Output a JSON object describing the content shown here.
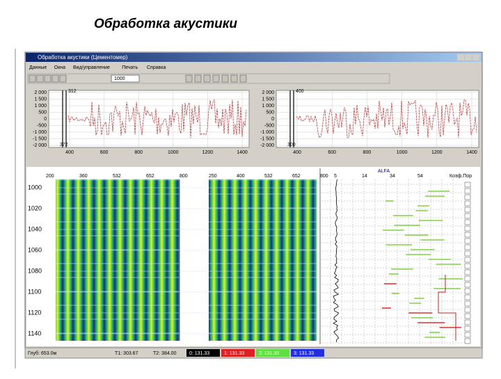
{
  "slide_title": "Обработка акустики",
  "window": {
    "title": "Обработка акустики (Цементомер)",
    "menu": [
      "Данные",
      "Окна",
      "Вид/управление",
      "Печать",
      "Справка"
    ],
    "toolbar_value": "1000"
  },
  "plots": [
    {
      "yticks": [
        "2 000",
        "1 500",
        "1 000",
        "500",
        "0",
        "-500",
        "-1 000",
        "-1 500",
        "-2 000"
      ],
      "xticks": [
        "400",
        "600",
        "800",
        "1000",
        "1200",
        "1400"
      ],
      "markers": [
        "312",
        "372"
      ]
    },
    {
      "yticks": [
        "2 000",
        "1 500",
        "1 000",
        "500",
        "0",
        "-500",
        "-1 000",
        "-1 500",
        "-2 000"
      ],
      "xticks": [
        "400",
        "600",
        "800",
        "1000",
        "1200",
        "1400"
      ],
      "markers": [
        "400",
        "300"
      ]
    }
  ],
  "log": {
    "depths": [
      "1000",
      "1020",
      "1040",
      "1060",
      "1080",
      "1100",
      "1120",
      "1140"
    ],
    "xticks1": [
      "200",
      "360",
      "532",
      "652",
      "800"
    ],
    "xticks2": [
      "250",
      "400",
      "532",
      "652",
      "800"
    ],
    "curve_ticks": [
      "5",
      "14",
      "34",
      "54"
    ],
    "curve_name": "ALFA",
    "right_header": "Коэф.Пор"
  },
  "status": {
    "depth": "Глуб: 653.0м",
    "t1": "T1: 303.67",
    "t2": "T2: 384.00",
    "fields": [
      "0: 131.33",
      "1: 131.33",
      "2: 131.33",
      "3: 131.33"
    ]
  }
}
